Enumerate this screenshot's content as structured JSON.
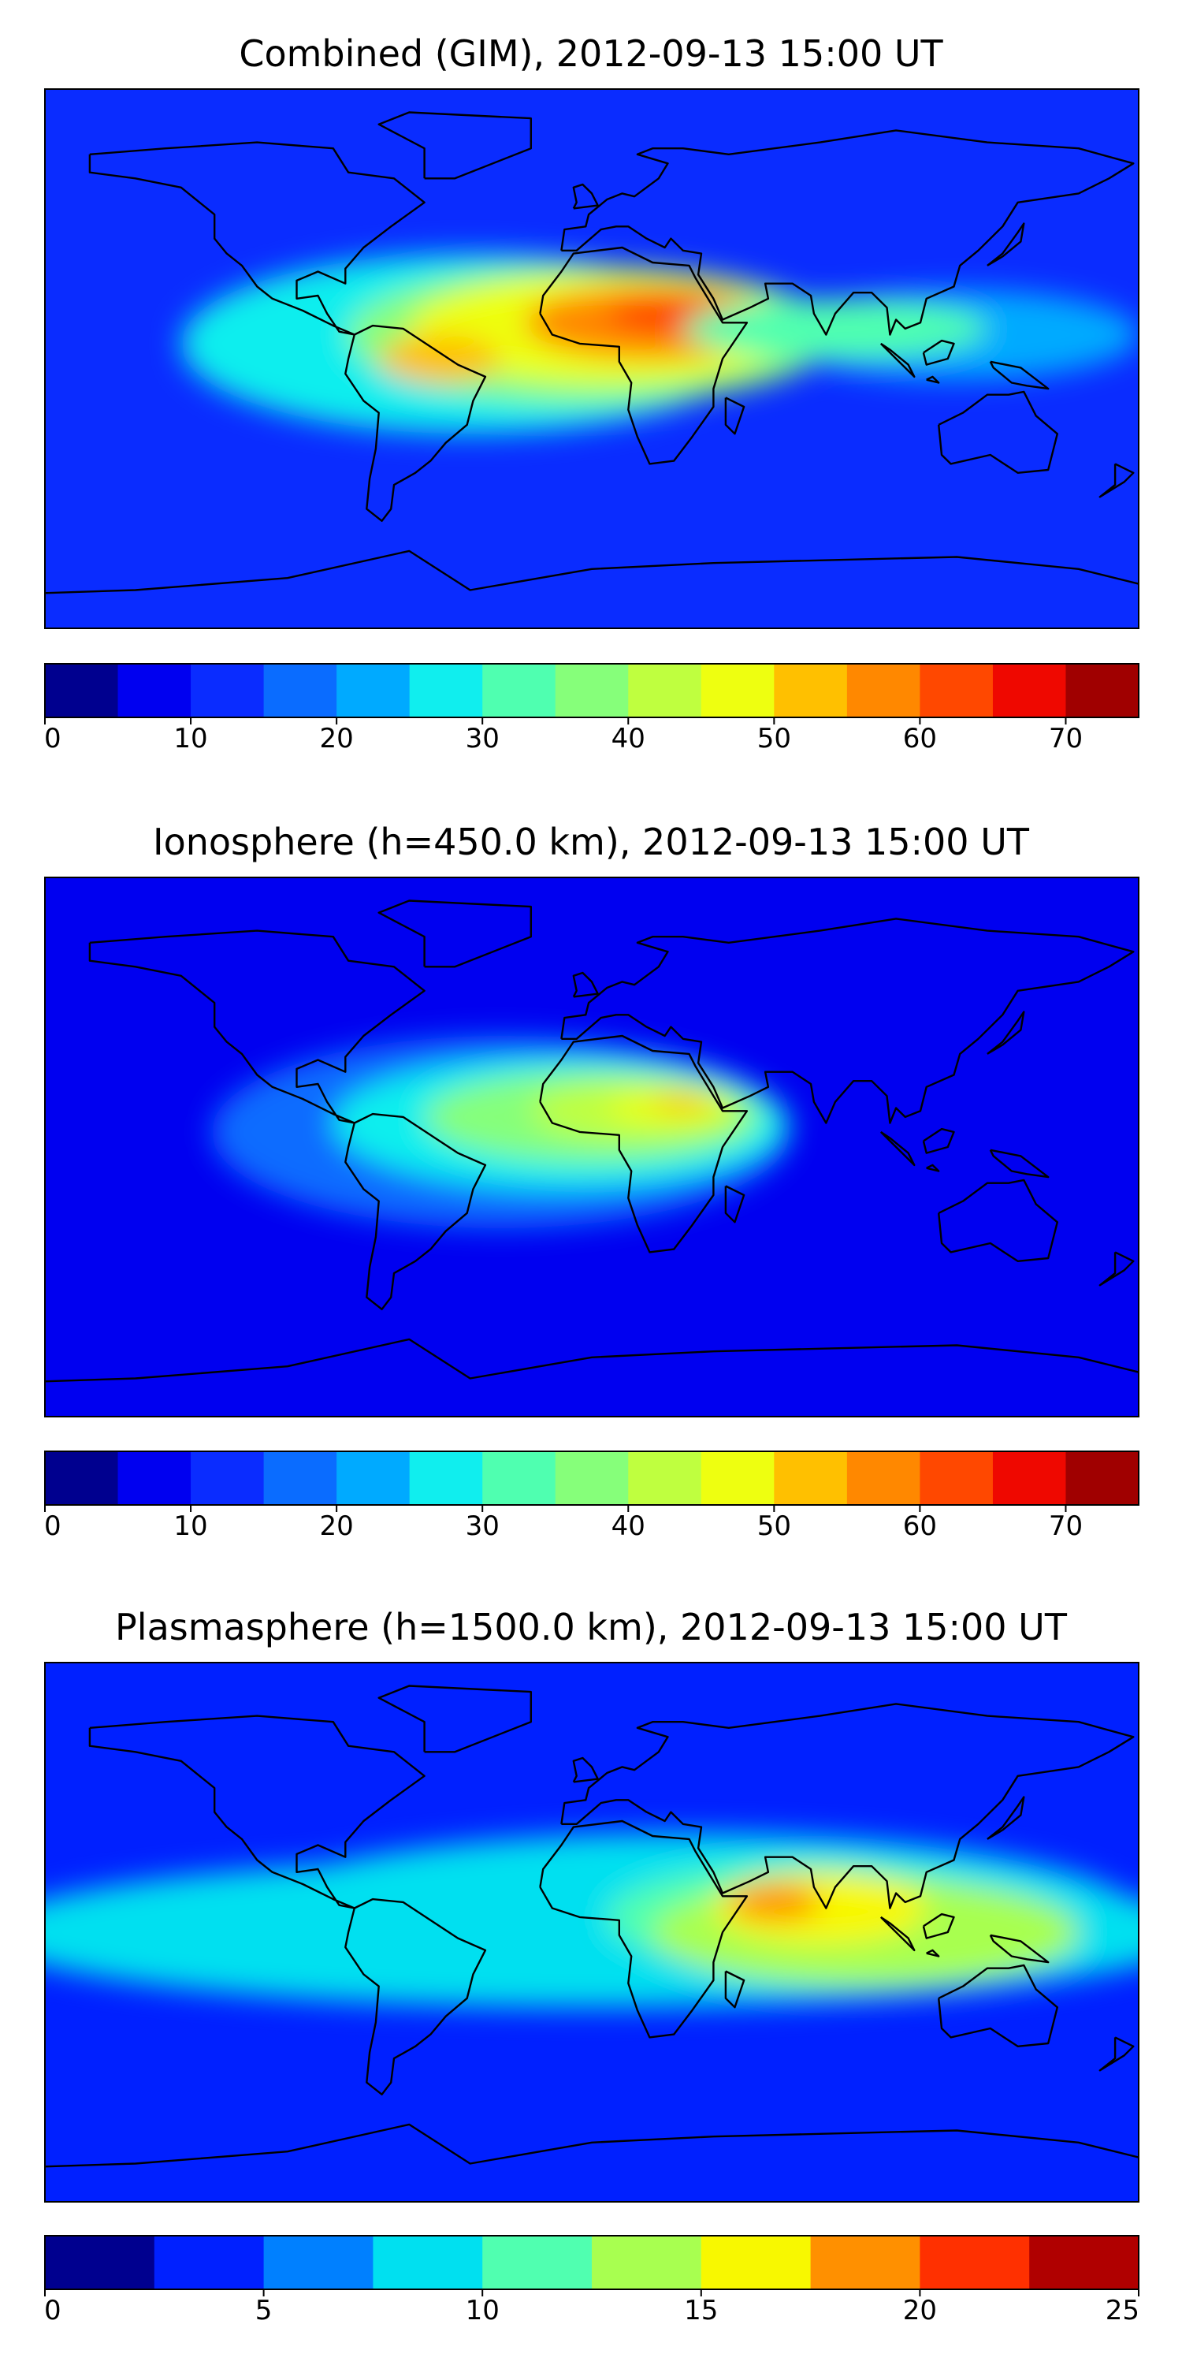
{
  "chart_data": [
    {
      "type": "heatmap",
      "title": "Combined (GIM), 2012-09-13 15:00 UT",
      "colorbar": {
        "levels": [
          0,
          5,
          10,
          15,
          20,
          25,
          30,
          35,
          40,
          45,
          50,
          55,
          60,
          65,
          70,
          75
        ],
        "tick_values": [
          0,
          10,
          20,
          30,
          40,
          50,
          60,
          70
        ],
        "tick_labels": [
          "0",
          "10",
          "20",
          "30",
          "40",
          "50",
          "60",
          "70"
        ],
        "colors": [
          "#00008f",
          "#0000f0",
          "#0a2cff",
          "#0a6cff",
          "#00aaff",
          "#10eeee",
          "#4fffb0",
          "#86ff7a",
          "#bfff3f",
          "#eeff10",
          "#ffc000",
          "#ff8800",
          "#ff4800",
          "#ef0800",
          "#a00000"
        ]
      },
      "background_level": 2,
      "blobs": [
        {
          "lon": -40,
          "lat": 5,
          "level": 5,
          "rx": 95,
          "ry": 30
        },
        {
          "lon": 0,
          "lat": 8,
          "level": 7,
          "rx": 80,
          "ry": 23
        },
        {
          "lon": 5,
          "lat": 10,
          "level": 9,
          "rx": 65,
          "ry": 18
        },
        {
          "lon": 20,
          "lat": 12,
          "level": 11,
          "rx": 42,
          "ry": 12
        },
        {
          "lon": 30,
          "lat": 15,
          "level": 12,
          "rx": 25,
          "ry": 7
        },
        {
          "lon": -50,
          "lat": 0,
          "level": 10,
          "rx": 20,
          "ry": 8
        },
        {
          "lon": 120,
          "lat": 8,
          "level": 4,
          "rx": 60,
          "ry": 15
        },
        {
          "lon": 80,
          "lat": 10,
          "level": 6,
          "rx": 50,
          "ry": 10
        }
      ]
    },
    {
      "type": "heatmap",
      "title": "Ionosphere  (h=450.0 km), 2012-09-13 15:00 UT",
      "colorbar": {
        "levels": [
          0,
          5,
          10,
          15,
          20,
          25,
          30,
          35,
          40,
          45,
          50,
          55,
          60,
          65,
          70,
          75
        ],
        "tick_values": [
          0,
          10,
          20,
          30,
          40,
          50,
          60,
          70
        ],
        "tick_labels": [
          "0",
          "10",
          "20",
          "30",
          "40",
          "50",
          "60",
          "70"
        ],
        "colors": [
          "#00008f",
          "#0000f0",
          "#0a2cff",
          "#0a6cff",
          "#00aaff",
          "#10eeee",
          "#4fffb0",
          "#86ff7a",
          "#bfff3f",
          "#eeff10",
          "#ffc000",
          "#ff8800",
          "#ff4800",
          "#ef0800",
          "#a00000"
        ]
      },
      "background_level": 1,
      "blobs": [
        {
          "lon": -30,
          "lat": 5,
          "level": 3,
          "rx": 95,
          "ry": 32
        },
        {
          "lon": -10,
          "lat": 8,
          "level": 5,
          "rx": 75,
          "ry": 22
        },
        {
          "lon": 0,
          "lat": 10,
          "level": 7,
          "rx": 55,
          "ry": 15
        },
        {
          "lon": 15,
          "lat": 12,
          "level": 8,
          "rx": 35,
          "ry": 10
        },
        {
          "lon": 25,
          "lat": 13,
          "level": 9,
          "rx": 20,
          "ry": 5
        },
        {
          "lon": 30,
          "lat": 15,
          "level": 10,
          "rx": 10,
          "ry": 3
        }
      ]
    },
    {
      "type": "heatmap",
      "title": "Plasmasphere (h=1500.0 km), 2012-09-13 15:00 UT",
      "colorbar": {
        "levels": [
          0,
          2.5,
          5,
          7.5,
          10,
          12.5,
          15,
          17.5,
          20,
          22.5,
          25
        ],
        "tick_values": [
          0,
          5,
          10,
          15,
          20,
          25
        ],
        "tick_labels": [
          "0",
          "5",
          "10",
          "15",
          "20",
          "25"
        ],
        "colors": [
          "#00008f",
          "#0020ff",
          "#0080ff",
          "#00e0f0",
          "#50ffb0",
          "#a8ff50",
          "#f8f800",
          "#ff9000",
          "#ff3000",
          "#b00000"
        ]
      },
      "background_level": 1,
      "blobs": [
        {
          "lon": 0,
          "lat": 0,
          "level": 3,
          "rx": 200,
          "ry": 25
        },
        {
          "lon": 30,
          "lat": 5,
          "level": 3,
          "rx": 150,
          "ry": 28
        },
        {
          "lon": 70,
          "lat": 5,
          "level": 4,
          "rx": 65,
          "ry": 18
        },
        {
          "lon": 90,
          "lat": 0,
          "level": 5,
          "rx": 70,
          "ry": 18
        },
        {
          "lon": 75,
          "lat": 8,
          "level": 6,
          "rx": 35,
          "ry": 12
        },
        {
          "lon": 60,
          "lat": 10,
          "level": 7,
          "rx": 15,
          "ry": 6
        }
      ]
    }
  ]
}
